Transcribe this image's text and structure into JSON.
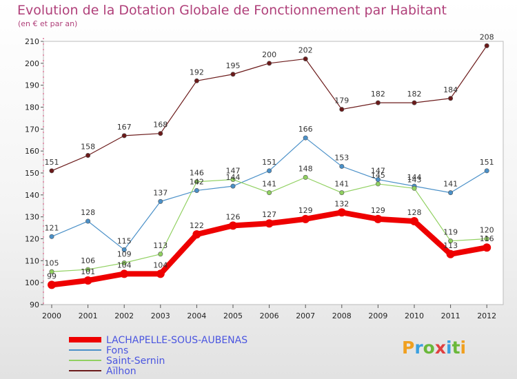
{
  "header": {
    "title": "Evolution de la Dotation Globale de Fonctionnement par Habitant",
    "subtitle": "(en € et par an)"
  },
  "logo": {
    "letters": [
      "P",
      "r",
      "o",
      "x",
      "i",
      "t",
      "i"
    ],
    "colors": [
      "#f0a020",
      "#3aa0e0",
      "#6ab83a",
      "#e04040",
      "#3aa0e0",
      "#6ab83a",
      "#f0a020"
    ]
  },
  "chart_data": {
    "type": "line",
    "x": [
      "2000",
      "2001",
      "2002",
      "2003",
      "2004",
      "2005",
      "2006",
      "2007",
      "2008",
      "2009",
      "2010",
      "2011",
      "2012"
    ],
    "ylim": [
      90,
      210
    ],
    "yticks": [
      90,
      100,
      110,
      120,
      130,
      140,
      150,
      160,
      170,
      180,
      190,
      200,
      210
    ],
    "grid": false,
    "legend_position": "bottom-left",
    "series": [
      {
        "name": "LACHAPELLE-SOUS-AUBENAS",
        "color": "#ee0000",
        "values": [
          99,
          101,
          104,
          104,
          122,
          126,
          127,
          129,
          132,
          129,
          128,
          113,
          116
        ]
      },
      {
        "name": "Fons",
        "color": "#4a90c8",
        "values": [
          121,
          128,
          115,
          137,
          142,
          144,
          151,
          166,
          153,
          147,
          144,
          141,
          151
        ]
      },
      {
        "name": "Saint-Sernin",
        "color": "#90d060",
        "values": [
          105,
          106,
          109,
          113,
          146,
          147,
          141,
          148,
          141,
          145,
          143,
          119,
          120
        ]
      },
      {
        "name": "Aïlhon",
        "color": "#6b1a1a",
        "values": [
          151,
          158,
          167,
          168,
          192,
          195,
          200,
          202,
          179,
          182,
          182,
          184,
          208
        ]
      }
    ]
  }
}
